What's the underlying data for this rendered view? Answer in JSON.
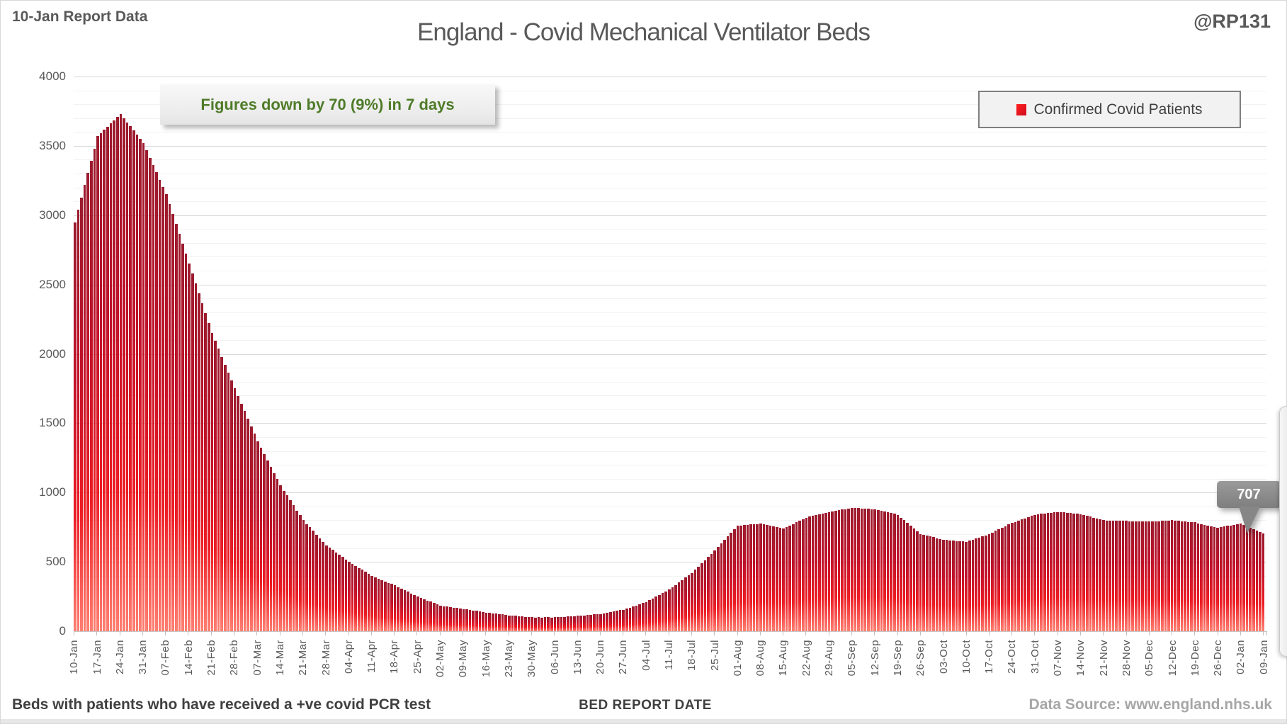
{
  "page": {
    "report_label": "10-Jan Report Data",
    "title": "England - Covid Mechanical Ventilator Beds",
    "watermark": "@RP131",
    "annotation": "Figures down by 70 (9%) in 7 days",
    "legend_label": "Confirmed Covid Patients",
    "footnote_left": "Beds with patients who have received a +ve covid PCR test",
    "xaxis_title": "BED REPORT DATE",
    "data_source": "Data Source: www.england.nhs.uk",
    "last_value_callout": "707"
  },
  "colors": {
    "green": "#4e7b28",
    "barTop": "#9b1b2e",
    "barMid": "#ec1c24",
    "barBot": "#ff8072"
  },
  "chart_data": {
    "type": "bar",
    "title": "England - Covid Mechanical Ventilator Beds",
    "xlabel": "BED REPORT DATE",
    "ylabel": "",
    "ylim": [
      0,
      4000
    ],
    "y_tick_step": 500,
    "y_minor_gridline_step": 100,
    "y_tick_labels": [
      "0",
      "500",
      "1000",
      "1500",
      "2000",
      "2500",
      "3000",
      "3500",
      "4000"
    ],
    "grid": "on",
    "legend_position": "top-right",
    "series_name": "Confirmed Covid Patients",
    "x_tick_interval_days": 7,
    "x_tick_labels": [
      "10-Jan",
      "17-Jan",
      "24-Jan",
      "31-Jan",
      "07-Feb",
      "14-Feb",
      "21-Feb",
      "28-Feb",
      "07-Mar",
      "14-Mar",
      "21-Mar",
      "28-Mar",
      "04-Apr",
      "11-Apr",
      "18-Apr",
      "25-Apr",
      "02-May",
      "09-May",
      "16-May",
      "23-May",
      "30-May",
      "06-Jun",
      "13-Jun",
      "20-Jun",
      "27-Jun",
      "04-Jul",
      "11-Jul",
      "18-Jul",
      "25-Jul",
      "01-Aug",
      "08-Aug",
      "15-Aug",
      "22-Aug",
      "29-Aug",
      "05-Sep",
      "12-Sep",
      "19-Sep",
      "26-Sep",
      "03-Oct",
      "10-Oct",
      "17-Oct",
      "24-Oct",
      "31-Oct",
      "07-Nov",
      "14-Nov",
      "21-Nov",
      "28-Nov",
      "05-Dec",
      "12-Dec",
      "19-Dec",
      "26-Dec",
      "02-Jan",
      "09-Jan"
    ],
    "peak_value": 3730,
    "last_value": 707,
    "weekly_change": {
      "delta": -70,
      "percent": -9,
      "days": 7
    },
    "daily_values": [
      2950,
      3039,
      3127,
      3216,
      3304,
      3393,
      3481,
      3570,
      3593,
      3616,
      3639,
      3661,
      3684,
      3707,
      3730,
      3700,
      3670,
      3640,
      3610,
      3580,
      3550,
      3520,
      3467,
      3414,
      3361,
      3309,
      3256,
      3203,
      3150,
      3079,
      3007,
      2936,
      2864,
      2793,
      2721,
      2650,
      2579,
      2507,
      2436,
      2364,
      2293,
      2221,
      2150,
      2093,
      2036,
      1979,
      1921,
      1864,
      1807,
      1750,
      1696,
      1641,
      1587,
      1533,
      1479,
      1424,
      1370,
      1324,
      1279,
      1233,
      1187,
      1141,
      1096,
      1050,
      1014,
      979,
      943,
      907,
      871,
      836,
      800,
      774,
      749,
      723,
      697,
      671,
      646,
      620,
      603,
      586,
      569,
      551,
      534,
      517,
      500,
      486,
      471,
      457,
      443,
      429,
      414,
      400,
      390,
      380,
      370,
      360,
      350,
      340,
      330,
      319,
      307,
      296,
      284,
      273,
      261,
      250,
      241,
      231,
      222,
      213,
      204,
      194,
      185,
      181,
      178,
      174,
      171,
      167,
      164,
      160,
      156,
      153,
      149,
      146,
      142,
      139,
      135,
      132,
      129,
      126,
      124,
      121,
      118,
      115,
      113,
      111,
      109,
      106,
      104,
      102,
      100,
      99,
      101,
      98,
      100,
      102,
      99,
      100,
      101,
      103,
      104,
      106,
      107,
      109,
      110,
      112,
      114,
      116,
      119,
      121,
      123,
      125,
      129,
      134,
      138,
      142,
      146,
      151,
      155,
      163,
      171,
      179,
      186,
      194,
      202,
      210,
      223,
      236,
      249,
      261,
      274,
      287,
      300,
      317,
      334,
      351,
      369,
      386,
      403,
      420,
      443,
      466,
      489,
      511,
      534,
      557,
      580,
      606,
      631,
      657,
      683,
      709,
      734,
      760,
      762,
      764,
      766,
      769,
      771,
      773,
      775,
      770,
      765,
      760,
      755,
      750,
      745,
      740,
      751,
      763,
      774,
      786,
      797,
      809,
      820,
      826,
      831,
      837,
      843,
      849,
      854,
      860,
      864,
      869,
      873,
      877,
      881,
      886,
      890,
      889,
      887,
      886,
      884,
      883,
      881,
      880,
      874,
      869,
      863,
      857,
      851,
      846,
      840,
      820,
      800,
      780,
      760,
      740,
      720,
      700,
      694,
      689,
      683,
      677,
      671,
      666,
      660,
      658,
      656,
      654,
      651,
      649,
      647,
      645,
      653,
      661,
      669,
      676,
      684,
      692,
      700,
      711,
      723,
      734,
      746,
      757,
      769,
      780,
      789,
      797,
      806,
      814,
      823,
      831,
      840,
      843,
      846,
      849,
      851,
      854,
      857,
      860,
      858,
      856,
      854,
      851,
      849,
      847,
      845,
      839,
      832,
      826,
      819,
      813,
      806,
      800,
      799,
      799,
      798,
      797,
      796,
      796,
      795,
      794,
      794,
      793,
      792,
      791,
      791,
      790,
      791,
      793,
      794,
      796,
      797,
      799,
      800,
      798,
      796,
      794,
      791,
      789,
      787,
      785,
      779,
      774,
      768,
      762,
      756,
      751,
      745,
      750,
      754,
      759,
      763,
      768,
      772,
      777,
      767,
      757,
      747,
      737,
      727,
      717,
      707
    ]
  }
}
